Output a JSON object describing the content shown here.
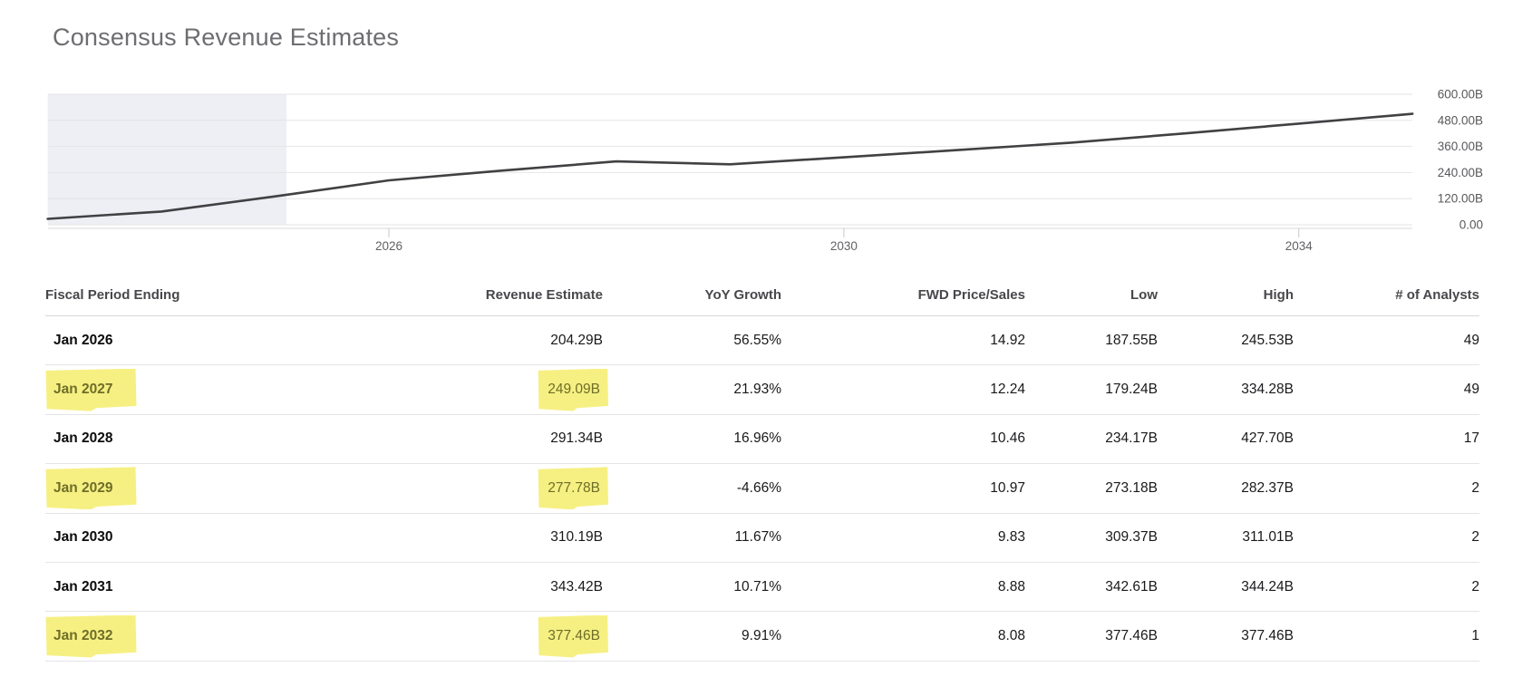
{
  "page": {
    "title": "Consensus Revenue Estimates"
  },
  "chart_data": {
    "type": "line",
    "title": "Consensus Revenue Estimates",
    "units": "billions USD, fiscal years ending January",
    "x": [
      2023,
      2024,
      2025,
      2026,
      2027,
      2028,
      2029,
      2030,
      2031,
      2032,
      2033,
      2034,
      2035
    ],
    "series": [
      {
        "name": "Revenue estimate",
        "color": "#414144",
        "values": [
          27,
          61,
          130.5,
          204.29,
          249.09,
          291.34,
          277.78,
          310.19,
          343.42,
          377.46,
          420,
          465,
          510
        ]
      }
    ],
    "ylim": [
      0,
      600
    ],
    "y_ticks": [
      600,
      480,
      360,
      240,
      120,
      0
    ],
    "y_tick_labels": [
      "600.00B",
      "480.00B",
      "360.00B",
      "240.00B",
      "120.00B",
      "0.00"
    ],
    "y_axis_position": "right",
    "x_ticks": [
      2026,
      2030,
      2034
    ],
    "x_tick_labels": [
      "2026",
      "2030",
      "2034"
    ],
    "grid": "horizontal",
    "shaded_band_x": [
      2023,
      2025.1
    ],
    "shaded_band_color": "#edeff5",
    "legend": "none"
  },
  "table": {
    "columns": [
      {
        "key": "period",
        "label": "Fiscal Period Ending",
        "align": "left"
      },
      {
        "key": "revenue",
        "label": "Revenue Estimate",
        "align": "right"
      },
      {
        "key": "yoy",
        "label": "YoY Growth",
        "align": "right"
      },
      {
        "key": "fwd_ps",
        "label": "FWD Price/Sales",
        "align": "right"
      },
      {
        "key": "low",
        "label": "Low",
        "align": "right"
      },
      {
        "key": "high",
        "label": "High",
        "align": "right"
      },
      {
        "key": "analysts",
        "label": "# of Analysts",
        "align": "right"
      }
    ],
    "rows": [
      {
        "period": "Jan 2026",
        "revenue": "204.29B",
        "yoy": "56.55%",
        "fwd_ps": "14.92",
        "low": "187.55B",
        "high": "245.53B",
        "analysts": "49",
        "highlighted": false
      },
      {
        "period": "Jan 2027",
        "revenue": "249.09B",
        "yoy": "21.93%",
        "fwd_ps": "12.24",
        "low": "179.24B",
        "high": "334.28B",
        "analysts": "49",
        "highlighted": true
      },
      {
        "period": "Jan 2028",
        "revenue": "291.34B",
        "yoy": "16.96%",
        "fwd_ps": "10.46",
        "low": "234.17B",
        "high": "427.70B",
        "analysts": "17",
        "highlighted": false
      },
      {
        "period": "Jan 2029",
        "revenue": "277.78B",
        "yoy": "-4.66%",
        "fwd_ps": "10.97",
        "low": "273.18B",
        "high": "282.37B",
        "analysts": "2",
        "highlighted": true
      },
      {
        "period": "Jan 2030",
        "revenue": "310.19B",
        "yoy": "11.67%",
        "fwd_ps": "9.83",
        "low": "309.37B",
        "high": "311.01B",
        "analysts": "2",
        "highlighted": false
      },
      {
        "period": "Jan 2031",
        "revenue": "343.42B",
        "yoy": "10.71%",
        "fwd_ps": "8.88",
        "low": "342.61B",
        "high": "344.24B",
        "analysts": "2",
        "highlighted": false
      },
      {
        "period": "Jan 2032",
        "revenue": "377.46B",
        "yoy": "9.91%",
        "fwd_ps": "8.08",
        "low": "377.46B",
        "high": "377.46B",
        "analysts": "1",
        "highlighted": true
      }
    ],
    "highlighted_columns": [
      "period",
      "revenue"
    ],
    "highlight_color": "#f6f083",
    "highlight_text_color": "#6e6e28"
  }
}
